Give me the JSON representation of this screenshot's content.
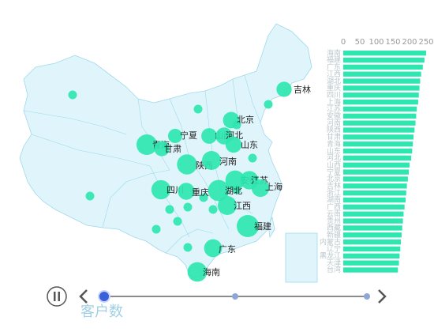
{
  "chart_data": [
    {
      "type": "bubble-map",
      "legend_label": "客户数",
      "points": [
        {
          "name": "吉林",
          "value": 40
        },
        {
          "name": "北京",
          "value": 55
        },
        {
          "name": "宁夏",
          "value": 30
        },
        {
          "name": "山西",
          "value": 45
        },
        {
          "name": "河北",
          "value": 60
        },
        {
          "name": "山东",
          "value": 50
        },
        {
          "name": "青海",
          "value": 120
        },
        {
          "name": "甘肃",
          "value": 40
        },
        {
          "name": "陕西",
          "value": 110
        },
        {
          "name": "河南",
          "value": 90
        },
        {
          "name": "安徽",
          "value": 100
        },
        {
          "name": "江苏",
          "value": 80
        },
        {
          "name": "上海",
          "value": 70
        },
        {
          "name": "四川",
          "value": 95
        },
        {
          "name": "重庆",
          "value": 60
        },
        {
          "name": "湖北",
          "value": 130
        },
        {
          "name": "江西",
          "value": 90
        },
        {
          "name": "福建",
          "value": 150
        },
        {
          "name": "广东",
          "value": 75
        },
        {
          "name": "海南",
          "value": 100
        }
      ]
    },
    {
      "type": "bar",
      "orientation": "horizontal",
      "categories": [
        "海南",
        "福建",
        "广东",
        "江西",
        "湖北",
        "重庆",
        "四川",
        "上海",
        "江苏",
        "安徽",
        "河南",
        "陕西",
        "甘肃",
        "青海",
        "山东",
        "河北",
        "山西",
        "宁夏",
        "北京",
        "吉林",
        "浙江",
        "湖南",
        "广西",
        "云南",
        "贵州",
        "西藏",
        "新疆",
        "内蒙古",
        "辽宁",
        "黑龙江",
        "天津",
        "台湾"
      ],
      "values": [
        250,
        245,
        240,
        235,
        232,
        230,
        228,
        226,
        222,
        220,
        218,
        215,
        212,
        210,
        208,
        205,
        200,
        198,
        195,
        192,
        190,
        188,
        185,
        182,
        180,
        178,
        176,
        174,
        172,
        170,
        168,
        165
      ],
      "xticks": [
        "0",
        "50",
        "100",
        "150",
        "200",
        "250"
      ],
      "xlim": [
        0,
        250
      ]
    }
  ],
  "timeline": {
    "play_icon": "pause-icon",
    "prev_icon": "chevron-left-icon",
    "next_icon": "chevron-right-icon",
    "current_index": 0,
    "total": 2
  }
}
